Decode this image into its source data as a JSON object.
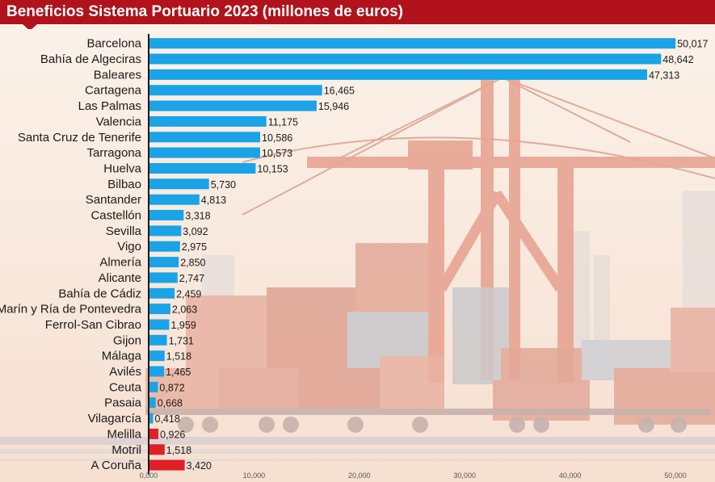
{
  "header": {
    "title": "Beneficios Sistema Portuario 2023 (millones de euros)"
  },
  "colors": {
    "title_bg": "#b1121b",
    "positive": "#1aa3e6",
    "negative": "#e02028",
    "text": "#1a1a1a"
  },
  "chart_data": {
    "type": "bar",
    "orientation": "horizontal",
    "title": "Beneficios Sistema Portuario 2023 (millones de euros)",
    "categories": [
      "Barcelona",
      "Bahía de Algeciras",
      "Baleares",
      "Cartagena",
      "Las Palmas",
      "Valencia",
      "Santa Cruz de Tenerife",
      "Tarragona",
      "Huelva",
      "Bilbao",
      "Santander",
      "Castellón",
      "Sevilla",
      "Vigo",
      "Almería",
      "Alicante",
      "Bahía de Cádiz",
      "Marín y Ría de Pontevedra",
      "Ferrol-San Cibrao",
      "Gijon",
      "Málaga",
      "Avilés",
      "Ceuta",
      "Pasaia",
      "Vilagarcía",
      "Melilla",
      "Motril",
      "A Coruña"
    ],
    "values": [
      50.017,
      48.642,
      47.313,
      16.465,
      15.946,
      11.175,
      10.586,
      10.573,
      10.153,
      5.73,
      4.813,
      3.318,
      3.092,
      2.975,
      2.85,
      2.747,
      2.459,
      2.063,
      1.959,
      1.731,
      1.518,
      1.465,
      0.872,
      0.668,
      0.418,
      -0.926,
      -1.518,
      -3.42
    ],
    "value_labels": [
      "50,017",
      "48,642",
      "47,313",
      "16,465",
      "15,946",
      "11,175",
      "10,586",
      "10,573",
      "10,153",
      "5,730",
      "4,813",
      "3,318",
      "3,092",
      "2,975",
      "2,850",
      "2,747",
      "2,459",
      "2,063",
      "1,959",
      "1,731",
      "1,518",
      "1,465",
      "0,872",
      "0,668",
      "0,418",
      "0,926",
      "1,518",
      "3,420"
    ],
    "xlim": [
      0,
      50
    ],
    "xticks": [
      0,
      10,
      20,
      30,
      40,
      50
    ],
    "xtick_labels": [
      "0,000",
      "10,000",
      "20,000",
      "30,000",
      "40,000",
      "50,000"
    ],
    "grid": false,
    "legend": "none"
  }
}
